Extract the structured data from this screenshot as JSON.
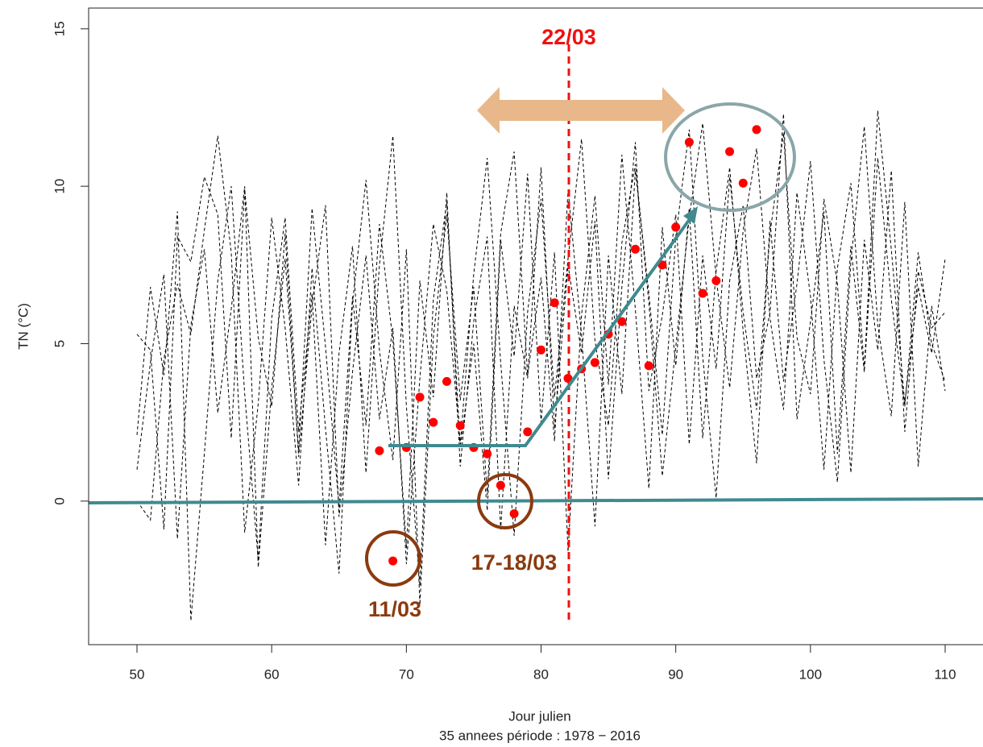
{
  "chart_data": {
    "type": "scatter",
    "y_label": "TN (°C)",
    "x_label": "Jour julien",
    "subtitle": "35 annees période :  1978  −  2016",
    "annotations": {
      "date_marker": "22/03",
      "cluster_1": "11/03",
      "cluster_2": "17-18/03"
    },
    "xlim": [
      46.41,
      112.81
    ],
    "ylim": [
      -4.56,
      15.66
    ],
    "xticks": [
      50,
      60,
      70,
      80,
      90,
      100,
      110
    ],
    "yticks": [
      0,
      5,
      10,
      15
    ],
    "color": "#ff0000",
    "x": [
      68,
      69,
      70,
      71,
      72,
      73,
      74,
      75,
      76,
      77,
      78,
      79,
      80,
      81,
      82,
      83,
      84,
      85,
      86,
      87,
      88,
      89,
      90,
      91,
      92,
      93,
      94,
      95,
      96
    ],
    "values": [
      1.6,
      -1.9,
      1.7,
      3.3,
      2.5,
      3.8,
      2.4,
      1.7,
      1.5,
      0.5,
      -0.4,
      2.2,
      4.8,
      6.3,
      3.9,
      4.2,
      4.4,
      5.3,
      5.7,
      8.0,
      4.3,
      7.5,
      8.7,
      11.4,
      6.6,
      7.0,
      11.1,
      10.1,
      11.8
    ],
    "background_color": "#000000",
    "background_x": [
      50,
      51,
      52,
      53,
      54,
      55,
      56,
      57,
      58,
      59,
      60,
      61,
      62,
      63,
      64,
      65,
      66,
      67,
      68,
      69,
      70,
      71,
      72,
      73,
      74,
      75,
      76,
      77,
      78,
      79,
      80,
      81,
      82,
      83,
      84,
      85,
      86,
      87,
      88,
      89,
      90,
      91,
      92,
      93,
      94,
      95,
      96,
      97,
      98,
      99,
      100,
      101,
      102,
      103,
      104,
      105,
      106,
      107,
      108,
      109,
      110
    ],
    "background_series": [
      {
        "values": [
          5.3,
          4.8,
          -0.9,
          8.4,
          7.6,
          10.3,
          9.1,
          2.0,
          9.9,
          5.2,
          3.0,
          8.5,
          1.4,
          6.2,
          9.4,
          -0.5,
          4.1,
          7.8,
          2.6,
          5.5,
          -2.0,
          3.9,
          8.8,
          6.7,
          1.8,
          7.2,
          10.9,
          4.4,
          -1.1,
          6.0,
          9.6,
          3.3,
          7.7,
          11.5,
          5.1,
          2.4,
          8.2,
          10.7,
          6.3,
          0.8,
          4.9,
          9.0,
          12.0,
          7.1,
          3.6,
          8.6,
          11.2,
          5.8,
          2.9,
          9.8,
          6.5,
          1.0,
          7.4,
          10.1,
          4.2,
          12.4,
          8.0,
          3.1,
          6.8,
          4.7,
          7.7
        ]
      },
      {
        "values": [
          2.1,
          6.8,
          4.0,
          9.2,
          -3.8,
          1.5,
          7.0,
          10.0,
          3.4,
          -1.9,
          5.8,
          9.0,
          2.2,
          6.6,
          -1.4,
          4.7,
          8.1,
          0.9,
          7.5,
          11.6,
          3.0,
          -2.7,
          6.4,
          9.5,
          1.7,
          5.0,
          -0.3,
          8.3,
          4.6,
          10.4,
          2.5,
          7.9,
          -1.6,
          5.9,
          9.7,
          3.7,
          11.0,
          6.1,
          0.4,
          8.7,
          4.3,
          9.3,
          2.0,
          7.3,
          10.6,
          5.4,
          1.2,
          8.9,
          3.8,
          6.9,
          10.8,
          4.5,
          0.6,
          7.6,
          11.9,
          5.6,
          2.7,
          9.5,
          1.1,
          6.2,
          3.5
        ]
      },
      {
        "values": [
          0.0,
          -0.6,
          4.5,
          6.9,
          5.3,
          8.6,
          11.6,
          7.9,
          -1.0,
          3.1,
          9.0,
          5.5,
          0.5,
          7.4,
          2.3,
          -2.3,
          6.3,
          10.2,
          4.8,
          1.3,
          8.0,
          -3.3,
          5.2,
          9.1,
          3.2,
          6.8,
          0.2,
          8.5,
          11.1,
          4.0,
          7.1,
          1.9,
          9.9,
          5.3,
          -0.8,
          7.8,
          3.4,
          10.5,
          6.6,
          2.1,
          8.4,
          11.8,
          4.6,
          0.1,
          7.0,
          9.4,
          3.9,
          6.0,
          12.3,
          2.6,
          5.7,
          9.2,
          1.5,
          8.1,
          4.1,
          10.9,
          6.4,
          3.0,
          7.9,
          5.0,
          3.8
        ]
      },
      {
        "values": [
          1.0,
          4.4,
          7.2,
          -1.2,
          5.6,
          8.0,
          2.8,
          6.1,
          10.0,
          -2.1,
          3.6,
          7.7,
          1.6,
          9.3,
          4.9,
          -0.2,
          6.5,
          2.4,
          8.8,
          5.1,
          -1.5,
          7.0,
          3.3,
          9.8,
          1.1,
          5.7,
          8.4,
          -0.9,
          6.2,
          3.9,
          10.6,
          2.3,
          7.5,
          4.7,
          8.9,
          0.7,
          6.8,
          11.4,
          3.5,
          5.9,
          9.1,
          1.8,
          7.8,
          4.2,
          10.3,
          6.0,
          2.9,
          8.5,
          11.7,
          5.2,
          3.4,
          9.6,
          6.9,
          0.9,
          8.3,
          4.8,
          10.5,
          2.2,
          7.3,
          5.5,
          6.0
        ]
      }
    ]
  }
}
